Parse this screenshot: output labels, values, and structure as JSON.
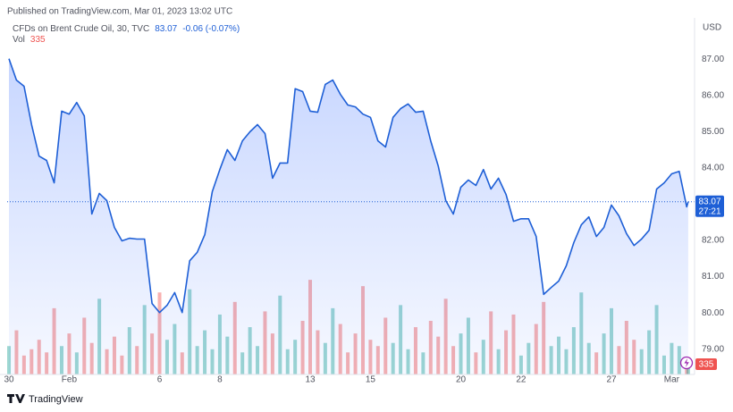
{
  "header": {
    "published": "Published on TradingView.com, Mar 01, 2023 13:02 UTC"
  },
  "chart_data": {
    "type": "area",
    "title": "CFDs on Brent Crude Oil, 30, TVC",
    "change": "-0.06 (-0.07%)",
    "currency": "USD",
    "countdown": "27:21",
    "color": "#1e5fd6",
    "x": [
      0,
      0.25,
      0.5,
      0.75,
      1,
      1.25,
      1.5,
      1.75,
      2,
      2.25,
      2.5,
      2.75,
      3,
      3.25,
      3.5,
      3.75,
      4,
      4.25,
      4.5,
      4.75,
      5,
      5.25,
      5.5,
      5.75,
      6,
      6.25,
      6.5,
      6.75,
      7,
      7.25,
      7.5,
      7.75,
      8,
      8.25,
      8.5,
      8.75,
      9,
      9.25,
      9.5,
      9.75,
      10,
      10.25,
      10.5,
      10.75,
      11,
      11.25,
      11.5,
      11.75,
      12,
      12.25,
      12.5,
      12.75,
      13,
      13.25,
      13.5,
      13.75,
      14,
      14.25,
      14.5,
      14.75,
      15,
      15.25,
      15.5,
      15.75,
      16,
      16.25,
      16.5,
      16.75,
      17,
      17.25,
      17.5,
      17.75,
      18,
      18.25,
      18.5,
      18.75,
      19,
      19.25,
      19.5,
      19.75,
      20,
      20.25,
      20.5,
      20.75,
      21,
      21.25,
      21.5,
      21.75,
      22,
      22.25,
      22.5,
      22.55
    ],
    "values": [
      87.02,
      86.43,
      86.26,
      85.2,
      84.33,
      84.21,
      83.59,
      85.57,
      85.49,
      85.81,
      85.44,
      82.73,
      83.3,
      83.1,
      82.36,
      81.99,
      82.06,
      82.04,
      82.04,
      80.26,
      80.01,
      80.21,
      80.56,
      80.01,
      81.44,
      81.67,
      82.16,
      83.35,
      83.96,
      84.51,
      84.21,
      84.75,
      85.0,
      85.2,
      84.95,
      83.72,
      84.14,
      84.14,
      86.19,
      86.11,
      85.57,
      85.54,
      86.31,
      86.43,
      86.04,
      85.74,
      85.69,
      85.49,
      85.4,
      84.75,
      84.58,
      85.4,
      85.64,
      85.77,
      85.54,
      85.57,
      84.75,
      84.06,
      83.1,
      82.73,
      83.47,
      83.67,
      83.52,
      83.96,
      83.42,
      83.72,
      83.27,
      82.53,
      82.6,
      82.6,
      82.11,
      80.51,
      80.7,
      80.88,
      81.3,
      81.94,
      82.43,
      82.65,
      82.11,
      82.36,
      82.98,
      82.68,
      82.19,
      81.86,
      82.04,
      82.28,
      83.42,
      83.59,
      83.84,
      83.91,
      82.93,
      83.07
    ],
    "xlim": [
      -0.06,
      22.73
    ],
    "xticks": [
      {
        "value": 0,
        "label": "30"
      },
      {
        "value": 2,
        "label": "Feb"
      },
      {
        "value": 5,
        "label": "6"
      },
      {
        "value": 7,
        "label": "8"
      },
      {
        "value": 10,
        "label": "13"
      },
      {
        "value": 12,
        "label": "15"
      },
      {
        "value": 15,
        "label": "20"
      },
      {
        "value": 17,
        "label": "22"
      },
      {
        "value": 20,
        "label": "27"
      },
      {
        "value": 22,
        "label": "Mar"
      }
    ],
    "ylim": [
      78.3,
      87.9
    ],
    "yticks": [
      {
        "value": 79,
        "label": "79.00"
      },
      {
        "value": 80,
        "label": "80.00"
      },
      {
        "value": 81,
        "label": "81.00"
      },
      {
        "value": 82,
        "label": "82.00"
      },
      {
        "value": 83,
        "label": "83.00"
      },
      {
        "value": 84,
        "label": "84.00"
      },
      {
        "value": 85,
        "label": "85.00"
      },
      {
        "value": 86,
        "label": "86.00"
      },
      {
        "value": 87,
        "label": "87.00"
      }
    ],
    "grid": false,
    "volume": {
      "name": "Vol",
      "up_color": "#26a69a",
      "down_color": "#ef5350",
      "ylim": [
        0,
        3400
      ],
      "values": [
        900,
        1400,
        600,
        800,
        1100,
        700,
        2100,
        900,
        1300,
        700,
        1800,
        1000,
        2400,
        800,
        1200,
        600,
        1500,
        900,
        2200,
        1300,
        2600,
        1100,
        1600,
        700,
        2700,
        900,
        1400,
        800,
        1900,
        1200,
        2300,
        700,
        1500,
        900,
        2000,
        1300,
        2500,
        800,
        1100,
        1700,
        3000,
        1400,
        1000,
        2100,
        1600,
        700,
        1300,
        2800,
        1100,
        900,
        1800,
        1000,
        2200,
        800,
        1500,
        700,
        1700,
        1200,
        2400,
        900,
        1300,
        1800,
        700,
        1100,
        2000,
        800,
        1400,
        1900,
        600,
        1000,
        1600,
        2300,
        900,
        1200,
        800,
        1500,
        2600,
        1000,
        700,
        1300,
        2100,
        900,
        1700,
        1100,
        800,
        1400,
        2200,
        600,
        1000,
        900,
        500,
        335
      ]
    }
  },
  "footer": {
    "brand": "TradingView"
  }
}
